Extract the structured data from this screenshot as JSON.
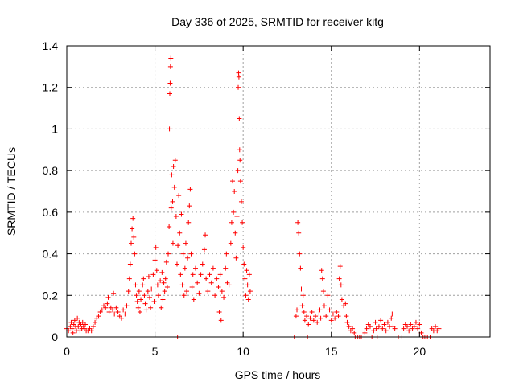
{
  "chart_data": {
    "type": "scatter",
    "title": "Day 336 of 2025, SRMTID for receiver kitg",
    "xlabel": "GPS time / hours",
    "ylabel": "SRMTID / TECUs",
    "xlim": [
      0,
      24
    ],
    "ylim": [
      0,
      1.4
    ],
    "xticks": [
      0,
      5,
      10,
      15,
      20
    ],
    "xtick_labels": [
      "0",
      "5",
      "10",
      "15",
      "20"
    ],
    "yticks": [
      0,
      0.2,
      0.4,
      0.6,
      0.8,
      1.0,
      1.2,
      1.4
    ],
    "ytick_labels": [
      "0",
      "0.2",
      "0.4",
      "0.6",
      "0.8",
      "1",
      "1.2",
      "1.4"
    ],
    "grid": true,
    "marker": "+",
    "marker_color": "#ff0000",
    "series": [
      {
        "name": "SRMTID",
        "points": [
          [
            0.0,
            0.04
          ],
          [
            0.1,
            0.03
          ],
          [
            0.2,
            0.05
          ],
          [
            0.25,
            0.07
          ],
          [
            0.3,
            0.04
          ],
          [
            0.35,
            0.02
          ],
          [
            0.4,
            0.06
          ],
          [
            0.45,
            0.08
          ],
          [
            0.5,
            0.05
          ],
          [
            0.55,
            0.03
          ],
          [
            0.6,
            0.09
          ],
          [
            0.65,
            0.05
          ],
          [
            0.7,
            0.07
          ],
          [
            0.75,
            0.03
          ],
          [
            0.8,
            0.06
          ],
          [
            0.85,
            0.04
          ],
          [
            0.9,
            0.07
          ],
          [
            0.95,
            0.05
          ],
          [
            1.0,
            0.04
          ],
          [
            1.05,
            0.06
          ],
          [
            1.1,
            0.03
          ],
          [
            1.2,
            0.03
          ],
          [
            1.3,
            0.04
          ],
          [
            1.4,
            0.03
          ],
          [
            1.5,
            0.05
          ],
          [
            1.6,
            0.07
          ],
          [
            1.7,
            0.09
          ],
          [
            1.8,
            0.1
          ],
          [
            1.9,
            0.12
          ],
          [
            2.0,
            0.13
          ],
          [
            2.1,
            0.15
          ],
          [
            2.2,
            0.14
          ],
          [
            2.3,
            0.16
          ],
          [
            2.35,
            0.19
          ],
          [
            2.4,
            0.12
          ],
          [
            2.5,
            0.14
          ],
          [
            2.6,
            0.13
          ],
          [
            2.65,
            0.21
          ],
          [
            2.7,
            0.11
          ],
          [
            2.8,
            0.14
          ],
          [
            2.9,
            0.12
          ],
          [
            3.0,
            0.1
          ],
          [
            3.1,
            0.09
          ],
          [
            3.2,
            0.13
          ],
          [
            3.3,
            0.11
          ],
          [
            3.4,
            0.15
          ],
          [
            3.5,
            0.22
          ],
          [
            3.55,
            0.28
          ],
          [
            3.6,
            0.35
          ],
          [
            3.65,
            0.45
          ],
          [
            3.7,
            0.52
          ],
          [
            3.75,
            0.57
          ],
          [
            3.8,
            0.48
          ],
          [
            3.85,
            0.4
          ],
          [
            3.9,
            0.25
          ],
          [
            3.95,
            0.2
          ],
          [
            4.0,
            0.17
          ],
          [
            4.05,
            0.14
          ],
          [
            4.1,
            0.22
          ],
          [
            4.15,
            0.12
          ],
          [
            4.2,
            0.18
          ],
          [
            4.3,
            0.25
          ],
          [
            4.35,
            0.28
          ],
          [
            4.4,
            0.2
          ],
          [
            4.45,
            0.16
          ],
          [
            4.5,
            0.13
          ],
          [
            4.6,
            0.22
          ],
          [
            4.65,
            0.29
          ],
          [
            4.7,
            0.19
          ],
          [
            4.75,
            0.14
          ],
          [
            4.8,
            0.23
          ],
          [
            4.9,
            0.3
          ],
          [
            4.95,
            0.17
          ],
          [
            5.0,
            0.37
          ],
          [
            5.05,
            0.43
          ],
          [
            5.1,
            0.32
          ],
          [
            5.15,
            0.25
          ],
          [
            5.2,
            0.2
          ],
          [
            5.3,
            0.27
          ],
          [
            5.35,
            0.14
          ],
          [
            5.4,
            0.31
          ],
          [
            5.45,
            0.18
          ],
          [
            5.5,
            0.26
          ],
          [
            5.55,
            0.22
          ],
          [
            5.6,
            0.28
          ],
          [
            5.65,
            0.36
          ],
          [
            5.7,
            0.24
          ],
          [
            5.75,
            0.4
          ],
          [
            5.8,
            0.53
          ],
          [
            5.82,
            1.0
          ],
          [
            5.84,
            1.17
          ],
          [
            5.86,
            1.22
          ],
          [
            5.88,
            1.3
          ],
          [
            5.9,
            1.34
          ],
          [
            5.92,
            0.62
          ],
          [
            5.95,
            0.78
          ],
          [
            6.0,
            0.65
          ],
          [
            6.02,
            0.45
          ],
          [
            6.05,
            0.82
          ],
          [
            6.1,
            0.72
          ],
          [
            6.15,
            0.85
          ],
          [
            6.2,
            0.58
          ],
          [
            6.25,
            0.35
          ],
          [
            6.28,
            0.0
          ],
          [
            6.3,
            0.44
          ],
          [
            6.35,
            0.68
          ],
          [
            6.4,
            0.5
          ],
          [
            6.45,
            0.3
          ],
          [
            6.5,
            0.59
          ],
          [
            6.55,
            0.25
          ],
          [
            6.6,
            0.4
          ],
          [
            6.65,
            0.2
          ],
          [
            6.7,
            0.33
          ],
          [
            6.75,
            0.45
          ],
          [
            6.8,
            0.22
          ],
          [
            6.85,
            0.38
          ],
          [
            6.9,
            0.55
          ],
          [
            6.95,
            0.63
          ],
          [
            7.0,
            0.71
          ],
          [
            7.05,
            0.4
          ],
          [
            7.1,
            0.24
          ],
          [
            7.15,
            0.3
          ],
          [
            7.2,
            0.18
          ],
          [
            7.3,
            0.33
          ],
          [
            7.4,
            0.26
          ],
          [
            7.5,
            0.21
          ],
          [
            7.6,
            0.3
          ],
          [
            7.7,
            0.35
          ],
          [
            7.8,
            0.42
          ],
          [
            7.85,
            0.49
          ],
          [
            7.9,
            0.28
          ],
          [
            8.0,
            0.22
          ],
          [
            8.1,
            0.3
          ],
          [
            8.2,
            0.26
          ],
          [
            8.3,
            0.33
          ],
          [
            8.4,
            0.2
          ],
          [
            8.5,
            0.28
          ],
          [
            8.6,
            0.24
          ],
          [
            8.65,
            0.12
          ],
          [
            8.7,
            0.3
          ],
          [
            8.75,
            0.08
          ],
          [
            8.8,
            0.22
          ],
          [
            8.9,
            0.19
          ],
          [
            9.0,
            0.33
          ],
          [
            9.05,
            0.4
          ],
          [
            9.1,
            0.26
          ],
          [
            9.2,
            0.25
          ],
          [
            9.3,
            0.45
          ],
          [
            9.35,
            0.55
          ],
          [
            9.4,
            0.75
          ],
          [
            9.45,
            0.6
          ],
          [
            9.5,
            0.7
          ],
          [
            9.55,
            0.5
          ],
          [
            9.6,
            0.38
          ],
          [
            9.65,
            0.58
          ],
          [
            9.7,
            0.8
          ],
          [
            9.72,
            1.2
          ],
          [
            9.74,
            1.27
          ],
          [
            9.76,
            1.25
          ],
          [
            9.78,
            1.05
          ],
          [
            9.8,
            0.9
          ],
          [
            9.82,
            0.85
          ],
          [
            9.85,
            0.75
          ],
          [
            9.9,
            0.65
          ],
          [
            9.95,
            0.55
          ],
          [
            10.0,
            0.43
          ],
          [
            10.05,
            0.35
          ],
          [
            10.1,
            0.28
          ],
          [
            10.15,
            0.2
          ],
          [
            10.2,
            0.32
          ],
          [
            10.25,
            0.25
          ],
          [
            10.3,
            0.18
          ],
          [
            10.35,
            0.3
          ],
          [
            10.4,
            0.22
          ],
          [
            12.9,
            0.0
          ],
          [
            13.0,
            0.1
          ],
          [
            13.05,
            0.13
          ],
          [
            13.1,
            0.55
          ],
          [
            13.15,
            0.5
          ],
          [
            13.2,
            0.4
          ],
          [
            13.25,
            0.33
          ],
          [
            13.3,
            0.23
          ],
          [
            13.35,
            0.15
          ],
          [
            13.4,
            0.2
          ],
          [
            13.45,
            0.12
          ],
          [
            13.5,
            0.08
          ],
          [
            13.6,
            0.1
          ],
          [
            13.65,
            0.0
          ],
          [
            13.7,
            0.06
          ],
          [
            13.8,
            0.09
          ],
          [
            13.9,
            0.12
          ],
          [
            14.0,
            0.08
          ],
          [
            14.1,
            0.1
          ],
          [
            14.2,
            0.07
          ],
          [
            14.3,
            0.11
          ],
          [
            14.35,
            0.13
          ],
          [
            14.4,
            0.09
          ],
          [
            14.45,
            0.32
          ],
          [
            14.5,
            0.28
          ],
          [
            14.55,
            0.22
          ],
          [
            14.6,
            0.15
          ],
          [
            14.7,
            0.1
          ],
          [
            14.8,
            0.2
          ],
          [
            14.9,
            0.13
          ],
          [
            15.0,
            0.08
          ],
          [
            15.1,
            0.11
          ],
          [
            15.2,
            0.09
          ],
          [
            15.3,
            0.12
          ],
          [
            15.4,
            0.1
          ],
          [
            15.45,
            0.28
          ],
          [
            15.5,
            0.34
          ],
          [
            15.55,
            0.25
          ],
          [
            15.6,
            0.18
          ],
          [
            15.7,
            0.15
          ],
          [
            15.8,
            0.16
          ],
          [
            15.85,
            0.1
          ],
          [
            15.9,
            0.07
          ],
          [
            16.0,
            0.05
          ],
          [
            16.1,
            0.03
          ],
          [
            16.2,
            0.04
          ],
          [
            16.3,
            0.02
          ],
          [
            16.35,
            0.0
          ],
          [
            16.5,
            0.0
          ],
          [
            16.6,
            0.0
          ],
          [
            16.7,
            0.0
          ],
          [
            16.9,
            0.02
          ],
          [
            17.0,
            0.04
          ],
          [
            17.1,
            0.06
          ],
          [
            17.2,
            0.05
          ],
          [
            17.3,
            0.0
          ],
          [
            17.4,
            0.03
          ],
          [
            17.5,
            0.07
          ],
          [
            17.55,
            0.04
          ],
          [
            17.6,
            0.0
          ],
          [
            17.7,
            0.05
          ],
          [
            17.8,
            0.08
          ],
          [
            17.9,
            0.04
          ],
          [
            18.0,
            0.06
          ],
          [
            18.1,
            0.03
          ],
          [
            18.2,
            0.07
          ],
          [
            18.3,
            0.05
          ],
          [
            18.4,
            0.09
          ],
          [
            18.45,
            0.11
          ],
          [
            18.5,
            0.05
          ],
          [
            18.6,
            0.04
          ],
          [
            18.8,
            0.0
          ],
          [
            19.0,
            0.0
          ],
          [
            19.1,
            0.04
          ],
          [
            19.2,
            0.06
          ],
          [
            19.3,
            0.05
          ],
          [
            19.4,
            0.03
          ],
          [
            19.5,
            0.06
          ],
          [
            19.6,
            0.04
          ],
          [
            19.7,
            0.05
          ],
          [
            19.8,
            0.07
          ],
          [
            19.9,
            0.04
          ],
          [
            20.0,
            0.06
          ],
          [
            20.1,
            0.02
          ],
          [
            20.2,
            0.0
          ],
          [
            20.3,
            0.0
          ],
          [
            20.45,
            0.0
          ],
          [
            20.6,
            0.0
          ],
          [
            20.7,
            0.04
          ],
          [
            20.8,
            0.03
          ],
          [
            20.9,
            0.05
          ],
          [
            21.0,
            0.03
          ],
          [
            21.1,
            0.04
          ]
        ]
      }
    ]
  }
}
